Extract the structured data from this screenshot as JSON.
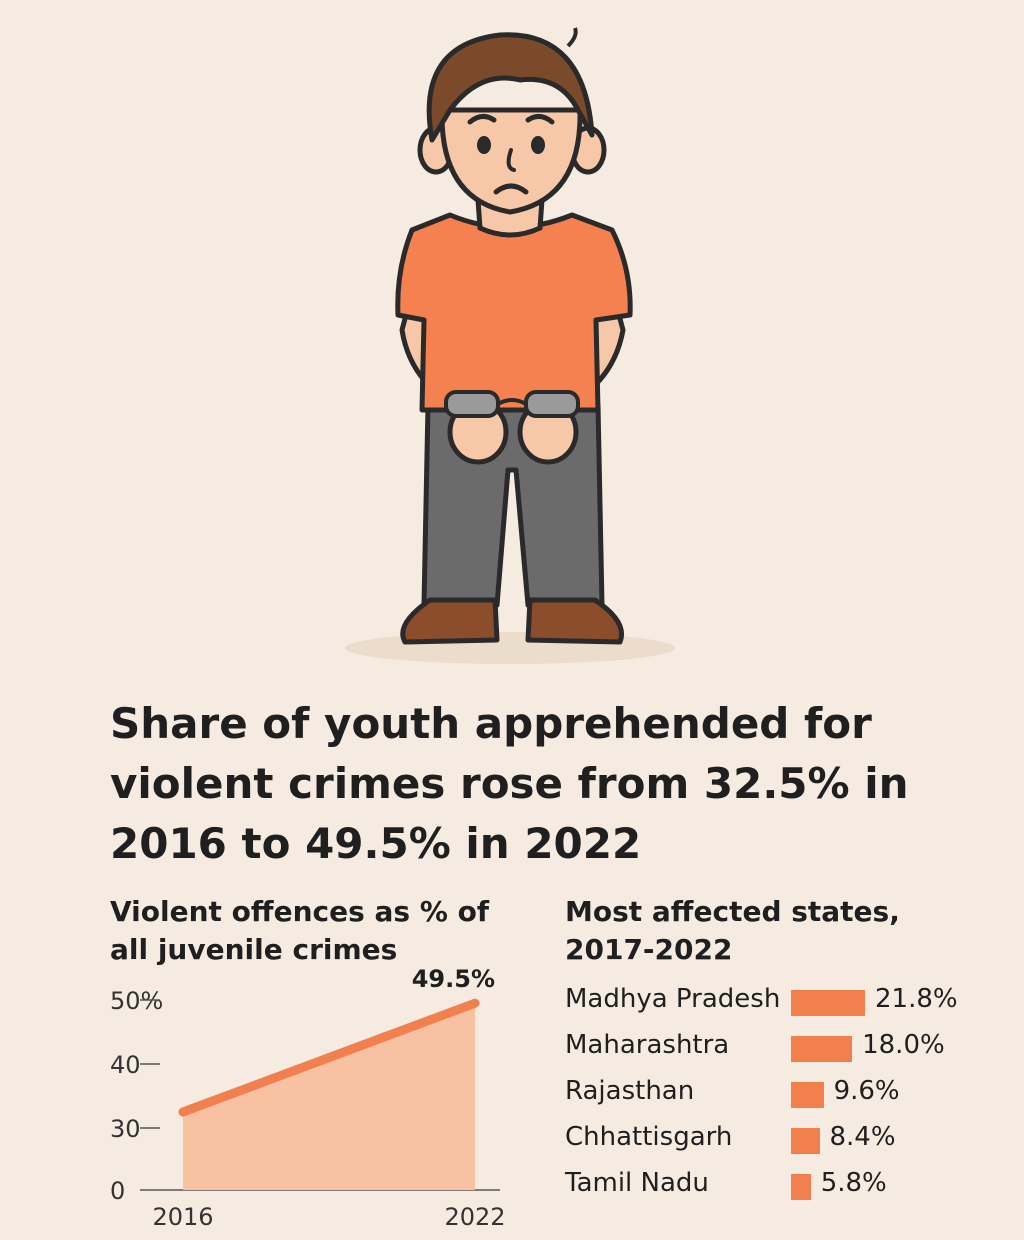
{
  "headline": "Share of youth apprehended for violent crimes rose from 32.5% in 2016 to 49.5% in 2022",
  "colors": {
    "background": "#f6ebe0",
    "accent": "#f2804e",
    "area_fill": "#f8c2a2",
    "shirt": "#f4814f",
    "trousers": "#6b6b6b",
    "hair": "#7a4a2b",
    "shoes": "#8b4d2c"
  },
  "illustration": {
    "icon": "sad-handcuffed-boy-icon"
  },
  "chart_data": [
    {
      "type": "area",
      "title": "Violent offences as % of all juvenile crimes",
      "x": [
        2016,
        2022
      ],
      "x_tick_labels": [
        "2016",
        "2022"
      ],
      "series": [
        {
          "values": [
            32.5,
            49.5
          ]
        }
      ],
      "y_ticks": [
        0,
        30,
        40,
        50
      ],
      "y_tick_labels": [
        "0",
        "30",
        "40",
        "50%"
      ],
      "ylim": [
        0,
        50
      ],
      "grid": false,
      "annotations": [
        {
          "x": 2022,
          "y": 49.5,
          "text": "49.5%"
        }
      ]
    },
    {
      "type": "bar",
      "orientation": "horizontal",
      "title": "Most affected states, 2017-2022",
      "categories": [
        "Madhya Pradesh",
        "Maharashtra",
        "Rajasthan",
        "Chhattisgarh",
        "Tamil Nadu"
      ],
      "values": [
        21.8,
        18.0,
        9.6,
        8.4,
        5.8
      ],
      "value_labels": [
        "21.8%",
        "18.0%",
        "9.6%",
        "8.4%",
        "5.8%"
      ]
    }
  ]
}
